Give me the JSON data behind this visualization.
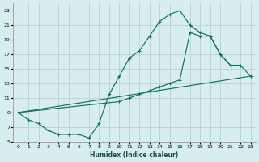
{
  "xlabel": "Humidex (Indice chaleur)",
  "bg_color": "#d8eeee",
  "grid_color": "#b8d8d8",
  "line_color": "#1a6e5e",
  "curve1_x": [
    0,
    1,
    2,
    3,
    4,
    5,
    6,
    7,
    8,
    9,
    10,
    11,
    12,
    13,
    14,
    15,
    16,
    17,
    18,
    19,
    20,
    21
  ],
  "curve1_y": [
    9,
    8,
    7.5,
    6.5,
    6,
    6,
    6,
    5.5,
    7.5,
    11.5,
    14,
    16.5,
    17.5,
    19.5,
    21.5,
    22.5,
    23,
    21,
    20,
    19.5,
    17,
    15.5
  ],
  "curve2_x": [
    0,
    23
  ],
  "curve2_y": [
    9,
    14
  ],
  "curve3_x": [
    0,
    10,
    11,
    12,
    13,
    14,
    15,
    16,
    17,
    18,
    19,
    20,
    21,
    22,
    23
  ],
  "curve3_y": [
    9,
    10.5,
    11,
    11.5,
    12,
    12.5,
    13,
    13.5,
    20,
    19.5,
    19.5,
    17,
    15.5,
    15.5,
    14
  ],
  "xlim": [
    -0.5,
    23.5
  ],
  "ylim": [
    5,
    24
  ],
  "yticks": [
    5,
    7,
    9,
    11,
    13,
    15,
    17,
    19,
    21,
    23
  ],
  "xticks": [
    0,
    1,
    2,
    3,
    4,
    5,
    6,
    7,
    8,
    9,
    10,
    11,
    12,
    13,
    14,
    15,
    16,
    17,
    18,
    19,
    20,
    21,
    22,
    23
  ]
}
